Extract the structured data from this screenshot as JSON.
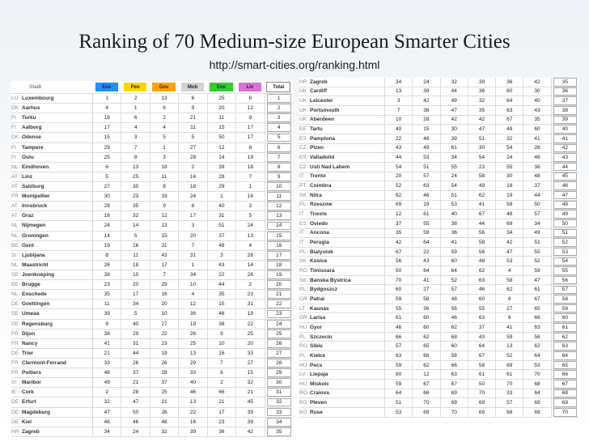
{
  "title": "Ranking of 70 Medium-size European Smarter Cities",
  "subtitle": "http://smart-cities.org/ranking.html",
  "header": {
    "city": "Stadt",
    "cols": [
      {
        "label": "Eco",
        "color": "#1e90ff"
      },
      {
        "label": "Peo",
        "color": "#ffd700"
      },
      {
        "label": "Gov",
        "color": "#ffa500"
      },
      {
        "label": "Mob",
        "color": "#d3d3d3"
      },
      {
        "label": "Env",
        "color": "#32cd32"
      },
      {
        "label": "Liv",
        "color": "#da70d6"
      },
      {
        "label": "Total",
        "color": "#ffffff"
      }
    ]
  },
  "left_rows": [
    [
      "LU",
      "Luxembourg",
      "1",
      "2",
      "13",
      "6",
      "25",
      "6",
      "1"
    ],
    [
      "DK",
      "Aarhus",
      "4",
      "1",
      "6",
      "9",
      "20",
      "12",
      "2"
    ],
    [
      "FI",
      "Turku",
      "18",
      "6",
      "2",
      "21",
      "11",
      "9",
      "3"
    ],
    [
      "FI",
      "Aalborg",
      "17",
      "4",
      "4",
      "11",
      "15",
      "17",
      "4"
    ],
    [
      "DK",
      "Odense",
      "15",
      "3",
      "5",
      "5",
      "50",
      "17",
      "5"
    ],
    [
      "FI",
      "Tampere",
      "29",
      "7",
      "1",
      "27",
      "12",
      "8",
      "6"
    ],
    [
      "FI",
      "Oulu",
      "25",
      "8",
      "3",
      "28",
      "14",
      "19",
      "7"
    ],
    [
      "NL",
      "Eindhoven",
      "6",
      "13",
      "18",
      "2",
      "39",
      "18",
      "8"
    ],
    [
      "AT",
      "Linz",
      "5",
      "25",
      "11",
      "14",
      "28",
      "7",
      "9"
    ],
    [
      "AT",
      "Salzburg",
      "27",
      "30",
      "8",
      "18",
      "29",
      "1",
      "10"
    ],
    [
      "FR",
      "Montpellier",
      "30",
      "23",
      "33",
      "24",
      "1",
      "16",
      "11"
    ],
    [
      "AT",
      "Innsbruck",
      "28",
      "35",
      "9",
      "8",
      "40",
      "3",
      "12"
    ],
    [
      "AT",
      "Graz",
      "18",
      "32",
      "12",
      "17",
      "31",
      "5",
      "13"
    ],
    [
      "NL",
      "Nijmegen",
      "24",
      "14",
      "13",
      "3",
      "51",
      "24",
      "14"
    ],
    [
      "NL",
      "Groningen",
      "14",
      "5",
      "15",
      "20",
      "37",
      "13",
      "15"
    ],
    [
      "BE",
      "Gent",
      "19",
      "16",
      "31",
      "7",
      "48",
      "4",
      "16"
    ],
    [
      "SI",
      "Ljubljana",
      "8",
      "11",
      "43",
      "31",
      "3",
      "28",
      "17"
    ],
    [
      "NL",
      "Maastricht",
      "26",
      "18",
      "17",
      "1",
      "43",
      "14",
      "18"
    ],
    [
      "SE",
      "Joenkoeping",
      "38",
      "10",
      "7",
      "34",
      "22",
      "26",
      "19"
    ],
    [
      "BE",
      "Brugge",
      "23",
      "20",
      "29",
      "10",
      "44",
      "2",
      "20"
    ],
    [
      "NL",
      "Enschede",
      "35",
      "17",
      "16",
      "4",
      "35",
      "23",
      "21"
    ],
    [
      "DE",
      "Goettingen",
      "11",
      "34",
      "20",
      "12",
      "15",
      "31",
      "22"
    ],
    [
      "SE",
      "Umeaa",
      "39",
      "5",
      "10",
      "36",
      "46",
      "19",
      "23"
    ],
    [
      "DE",
      "Regensburg",
      "9",
      "40",
      "27",
      "19",
      "38",
      "22",
      "24"
    ],
    [
      "FR",
      "Dijon",
      "38",
      "29",
      "22",
      "26",
      "9",
      "25",
      "25"
    ],
    [
      "FR",
      "Nancy",
      "41",
      "31",
      "23",
      "25",
      "10",
      "20",
      "26"
    ],
    [
      "DE",
      "Trier",
      "21",
      "44",
      "19",
      "13",
      "16",
      "33",
      "27"
    ],
    [
      "FR",
      "Clermont-Ferrand",
      "33",
      "26",
      "26",
      "29",
      "7",
      "27",
      "28"
    ],
    [
      "FR",
      "Poitiers",
      "48",
      "37",
      "28",
      "33",
      "8",
      "15",
      "29"
    ],
    [
      "SI",
      "Maribor",
      "49",
      "21",
      "37",
      "40",
      "2",
      "32",
      "30"
    ],
    [
      "IE",
      "Cork",
      "2",
      "28",
      "25",
      "46",
      "66",
      "21",
      "31"
    ],
    [
      "DE",
      "Erfurt",
      "32",
      "47",
      "21",
      "13",
      "21",
      "45",
      "32"
    ],
    [
      "DE",
      "Magdeburg",
      "47",
      "50",
      "26",
      "22",
      "17",
      "39",
      "33"
    ],
    [
      "DE",
      "Kiel",
      "46",
      "46",
      "48",
      "16",
      "23",
      "39",
      "34"
    ],
    [
      "HR",
      "Zagreb",
      "34",
      "24",
      "32",
      "39",
      "36",
      "42",
      "35"
    ]
  ],
  "right_rows": [
    [
      "HR",
      "Zagreb",
      "34",
      "24",
      "32",
      "39",
      "36",
      "42",
      "35"
    ],
    [
      "UK",
      "Cardiff",
      "13",
      "39",
      "44",
      "36",
      "60",
      "30",
      "36"
    ],
    [
      "UK",
      "Leicester",
      "3",
      "42",
      "49",
      "32",
      "64",
      "40",
      "37"
    ],
    [
      "UK",
      "Portsmouth",
      "7",
      "38",
      "47",
      "35",
      "63",
      "43",
      "38"
    ],
    [
      "UK",
      "Aberdeen",
      "10",
      "28",
      "42",
      "42",
      "67",
      "35",
      "39"
    ],
    [
      "EE",
      "Tartu",
      "40",
      "15",
      "30",
      "47",
      "49",
      "60",
      "40"
    ],
    [
      "ES",
      "Pamplona",
      "22",
      "48",
      "39",
      "51",
      "32",
      "41",
      "41"
    ],
    [
      "CZ",
      "Plzen",
      "43",
      "49",
      "61",
      "30",
      "54",
      "28",
      "42"
    ],
    [
      "ES",
      "Valladolid",
      "44",
      "53",
      "34",
      "54",
      "24",
      "46",
      "43"
    ],
    [
      "CZ",
      "Usti Nad Labem",
      "54",
      "51",
      "55",
      "23",
      "55",
      "36",
      "44"
    ],
    [
      "IT",
      "Trento",
      "20",
      "57",
      "24",
      "58",
      "30",
      "48",
      "45"
    ],
    [
      "PT",
      "Coimbra",
      "52",
      "63",
      "54",
      "49",
      "18",
      "37",
      "46"
    ],
    [
      "SK",
      "Nitra",
      "62",
      "46",
      "51",
      "62",
      "19",
      "44",
      "47"
    ],
    [
      "PL",
      "Rzeszow",
      "69",
      "19",
      "53",
      "41",
      "58",
      "50",
      "48"
    ],
    [
      "IT",
      "Trieste",
      "12",
      "61",
      "40",
      "67",
      "48",
      "57",
      "49"
    ],
    [
      "ES",
      "Oviedo",
      "37",
      "55",
      "38",
      "44",
      "69",
      "34",
      "50"
    ],
    [
      "IT",
      "Ancona",
      "35",
      "59",
      "36",
      "56",
      "34",
      "49",
      "51"
    ],
    [
      "IT",
      "Perugia",
      "42",
      "64",
      "41",
      "58",
      "42",
      "51",
      "52"
    ],
    [
      "PL",
      "Bialystok",
      "67",
      "22",
      "59",
      "56",
      "47",
      "55",
      "53"
    ],
    [
      "SK",
      "Kosice",
      "56",
      "43",
      "60",
      "48",
      "53",
      "52",
      "54"
    ],
    [
      "RO",
      "Timisoara",
      "50",
      "64",
      "64",
      "62",
      "4",
      "59",
      "55"
    ],
    [
      "SK",
      "Banska Bystrica",
      "70",
      "41",
      "52",
      "63",
      "58",
      "47",
      "56"
    ],
    [
      "PL",
      "Bydgoszcz",
      "60",
      "27",
      "57",
      "46",
      "62",
      "61",
      "57"
    ],
    [
      "GR",
      "Patrai",
      "59",
      "58",
      "48",
      "60",
      "6",
      "67",
      "58"
    ],
    [
      "LT",
      "Kaunas",
      "55",
      "36",
      "56",
      "55",
      "27",
      "65",
      "59"
    ],
    [
      "GR",
      "Larisa",
      "61",
      "60",
      "46",
      "63",
      "6",
      "66",
      "60"
    ],
    [
      "HU",
      "Gyor",
      "46",
      "60",
      "62",
      "37",
      "41",
      "63",
      "61"
    ],
    [
      "PL",
      "Szczecin",
      "66",
      "62",
      "68",
      "43",
      "59",
      "56",
      "62"
    ],
    [
      "RO",
      "Sibiu",
      "57",
      "65",
      "60",
      "64",
      "13",
      "62",
      "63"
    ],
    [
      "PL",
      "Kielce",
      "63",
      "66",
      "58",
      "67",
      "52",
      "64",
      "64"
    ],
    [
      "HU",
      "Pecs",
      "59",
      "62",
      "66",
      "58",
      "69",
      "53",
      "65"
    ],
    [
      "LV",
      "Liepaja",
      "60",
      "12",
      "63",
      "61",
      "61",
      "70",
      "66"
    ],
    [
      "HU",
      "Miskolc",
      "59",
      "67",
      "67",
      "50",
      "70",
      "68",
      "67"
    ],
    [
      "RO",
      "Craiova",
      "64",
      "66",
      "69",
      "70",
      "33",
      "64",
      "68"
    ],
    [
      "BG",
      "Pleven",
      "51",
      "70",
      "69",
      "69",
      "57",
      "69",
      "69"
    ],
    [
      "BG",
      "Ruse",
      "53",
      "69",
      "70",
      "69",
      "68",
      "69",
      "70"
    ]
  ]
}
